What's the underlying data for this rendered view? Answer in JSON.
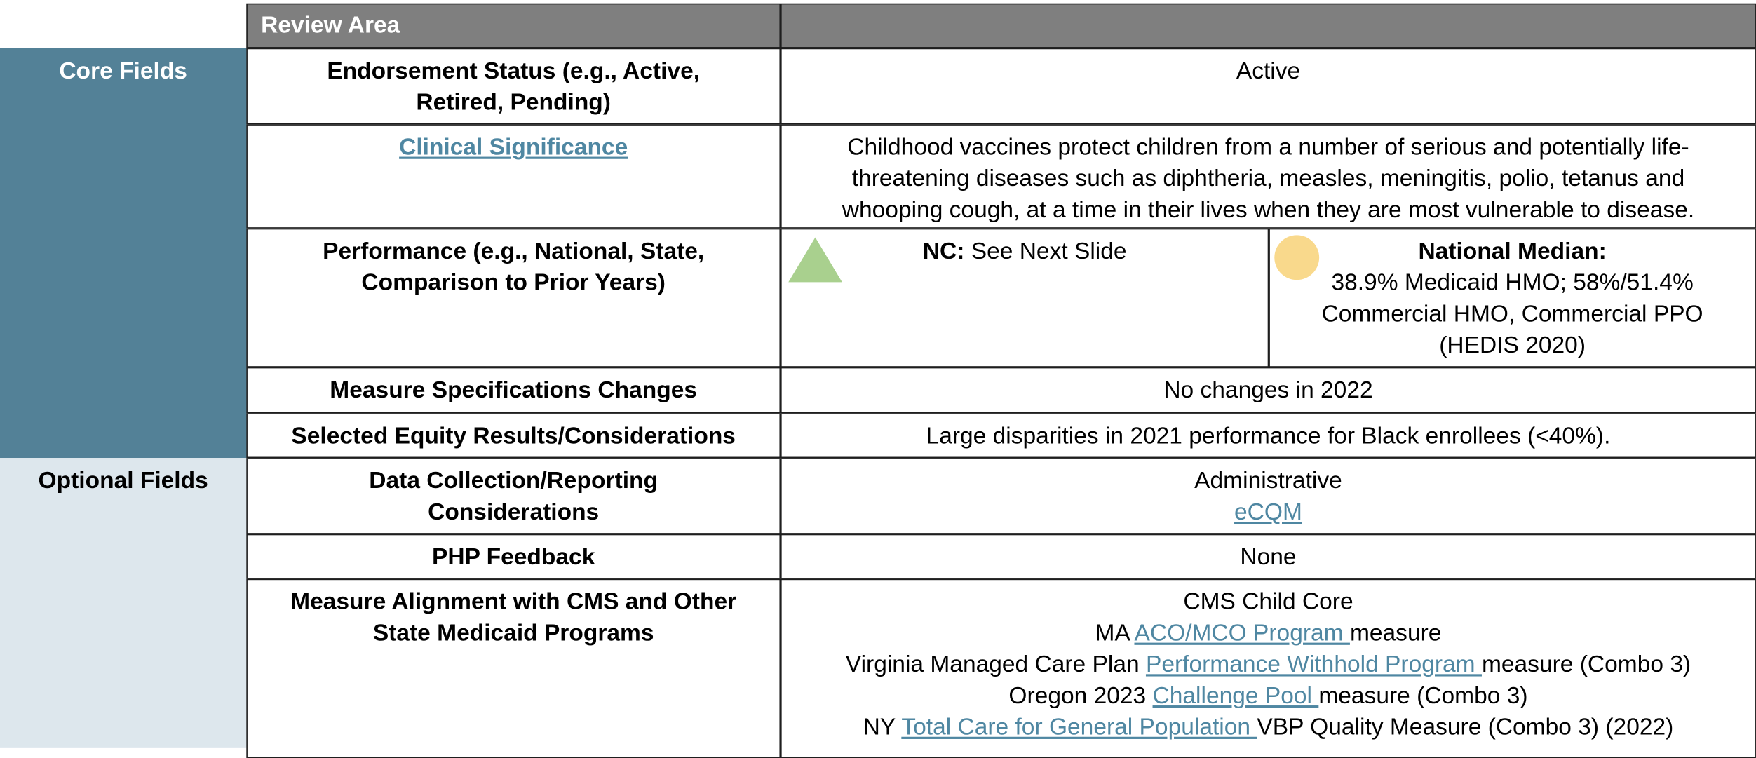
{
  "header": {
    "title": "Review Area"
  },
  "sections": [
    {
      "label": "Core Fields"
    },
    {
      "label": "Optional Fields"
    }
  ],
  "rows": [
    {
      "label": "Endorsement Status (e.g., Active, Retired, Pending)",
      "value": "Active"
    },
    {
      "label": "Clinical Significance",
      "value": "Childhood vaccines protect children from a number of serious and potentially life-threatening diseases such as diphtheria, measles, meningitis, polio, tetanus and whooping cough, at a time in their lives when they are most vulnerable to disease."
    },
    {
      "label": "Performance (e.g., National, State, Comparison to Prior Years)",
      "nc": {
        "label": "NC:",
        "text": "See Next Slide"
      },
      "national": {
        "label": "National Median:",
        "text": "38.9% Medicaid HMO; 58%/51.4% Commercial HMO, Commercial PPO (HEDIS 2020)"
      }
    },
    {
      "label": "Measure Specifications Changes",
      "value": "No changes in 2022"
    },
    {
      "label": "Selected Equity Results/Considerations",
      "value": "Large disparities in 2021 performance for Black enrollees (<40%)."
    },
    {
      "label": "Data Collection/Reporting Considerations",
      "lines": [
        [
          {
            "text": "Administrative"
          }
        ],
        [
          {
            "link": "eCQM"
          }
        ]
      ]
    },
    {
      "label": "PHP Feedback",
      "value": "None"
    },
    {
      "label": "Measure Alignment with CMS and Other State Medicaid Programs",
      "lines": [
        [
          {
            "text": "CMS Child Core"
          }
        ],
        [
          {
            "text": "MA "
          },
          {
            "link": "ACO/MCO Program "
          },
          {
            "text": "measure"
          }
        ],
        [
          {
            "text": "Virginia Managed Care Plan "
          },
          {
            "link": "Performance Withhold Program "
          },
          {
            "text": "measure (Combo 3)"
          }
        ],
        [
          {
            "text": "Oregon 2023 "
          },
          {
            "link": "Challenge Pool "
          },
          {
            "text": "measure (Combo 3)"
          }
        ],
        [
          {
            "text": "NY "
          },
          {
            "link": "Total Care for General Population "
          },
          {
            "text": "VBP Quality Measure (Combo 3) (2022)"
          }
        ]
      ]
    }
  ]
}
